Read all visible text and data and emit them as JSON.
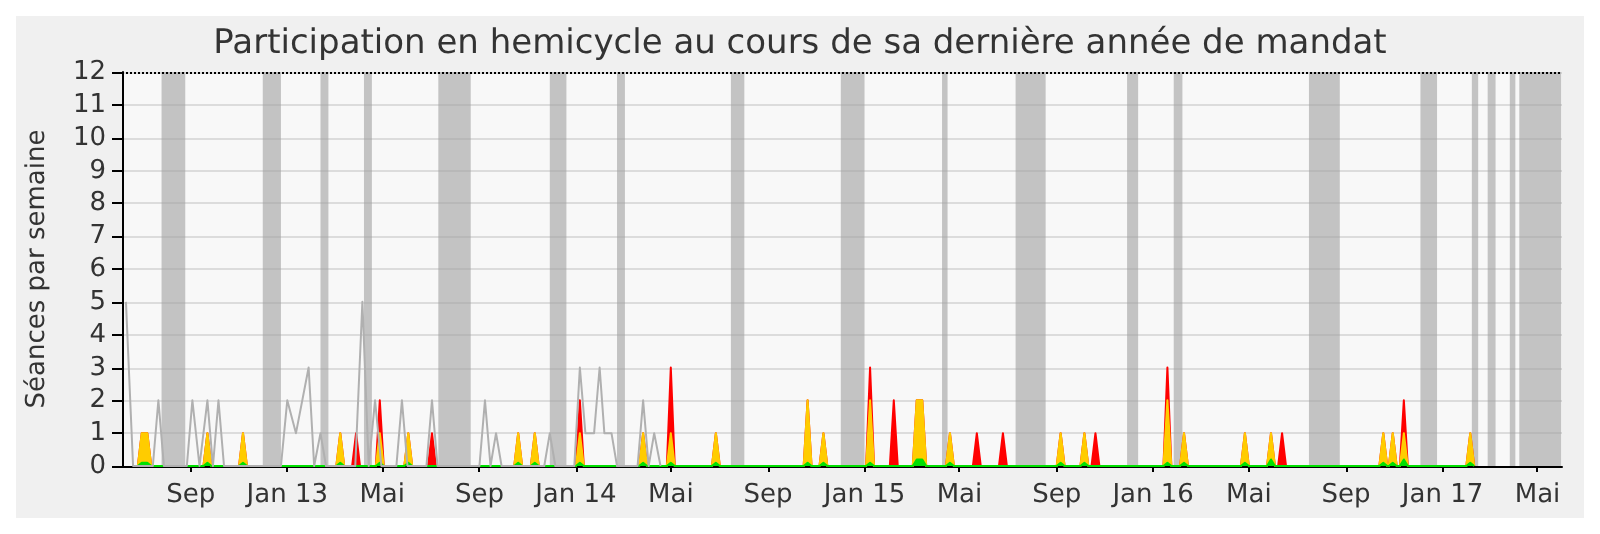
{
  "chart_data": {
    "type": "area",
    "title": "Participation en hemicycle au cours de sa dernière année de mandat",
    "ylabel": "Séances par semaine",
    "x": [
      "2012-06-26",
      "2012-07-01",
      "2012-07-08",
      "2012-07-13",
      "2012-09-17",
      "2012-09-22",
      "2012-09-27",
      "2012-11-01",
      "2012-11-06",
      "2012-11-11",
      "2013-03-04",
      "2013-03-09",
      "2013-03-14",
      "2013-03-24",
      "2013-03-29",
      "2013-04-03",
      "2013-04-23",
      "2013-04-28",
      "2013-05-03",
      "2013-05-29",
      "2013-06-03",
      "2013-06-08",
      "2013-06-28",
      "2013-07-03",
      "2013-07-08",
      "2013-10-15",
      "2013-10-20",
      "2013-10-25",
      "2013-11-05",
      "2013-11-10",
      "2013-11-15",
      "2014-01-01",
      "2014-01-06",
      "2014-01-11",
      "2014-03-22",
      "2014-03-27",
      "2014-04-01",
      "2014-04-26",
      "2014-05-01",
      "2014-05-06",
      "2014-06-22",
      "2014-06-27",
      "2014-07-02",
      "2014-10-16",
      "2014-10-21",
      "2014-10-26",
      "2014-11-05",
      "2014-11-10",
      "2014-11-15",
      "2015-01-03",
      "2015-01-08",
      "2015-01-13",
      "2015-02-02",
      "2015-02-07",
      "2015-02-12",
      "2015-03-03",
      "2015-03-08",
      "2015-03-15",
      "2015-03-20",
      "2015-04-14",
      "2015-04-19",
      "2015-04-24",
      "2015-05-18",
      "2015-05-23",
      "2015-05-28",
      "2015-06-20",
      "2015-06-25",
      "2015-06-30",
      "2015-09-01",
      "2015-09-06",
      "2015-09-11",
      "2015-10-01",
      "2015-10-06",
      "2015-10-11",
      "2015-10-15",
      "2015-10-20",
      "2015-10-25",
      "2016-01-14",
      "2016-01-19",
      "2016-01-24",
      "2016-02-04",
      "2016-02-09",
      "2016-02-14",
      "2016-04-21",
      "2016-04-26",
      "2016-05-01",
      "2016-05-24",
      "2016-05-29",
      "2016-06-03",
      "2016-06-07",
      "2016-06-12",
      "2016-06-17",
      "2016-10-13",
      "2016-10-18",
      "2016-10-23",
      "2016-10-25",
      "2016-10-30",
      "2016-11-04",
      "2016-11-08",
      "2016-11-13",
      "2016-11-18",
      "2017-01-31",
      "2017-02-05",
      "2017-02-10"
    ],
    "series": [
      {
        "color": "#ff0000",
        "values": [
          0,
          1,
          1,
          0,
          0,
          1,
          0,
          0,
          1,
          0,
          0,
          1,
          0,
          0,
          1,
          0,
          0,
          2,
          0,
          0,
          1,
          0,
          0,
          1,
          0,
          0,
          1,
          0,
          0,
          1,
          0,
          0,
          2,
          0,
          0,
          1,
          0,
          0,
          3,
          0,
          0,
          1,
          0,
          0,
          2,
          0,
          0,
          1,
          0,
          0,
          3,
          0,
          0,
          2,
          0,
          0,
          2,
          2,
          0,
          0,
          1,
          0,
          0,
          1,
          0,
          0,
          1,
          0,
          0,
          1,
          0,
          0,
          1,
          0,
          0,
          1,
          0,
          0,
          3,
          0,
          0,
          1,
          0,
          0,
          1,
          0,
          0,
          1,
          0,
          0,
          1,
          0,
          0,
          1,
          0,
          0,
          1,
          0,
          0,
          2,
          0,
          0,
          1,
          0
        ]
      },
      {
        "color": "#ffcc00",
        "values": [
          0,
          1,
          1,
          0,
          0,
          1,
          0,
          0,
          1,
          0,
          0,
          1,
          0,
          0,
          0,
          0,
          0,
          1,
          0,
          0,
          1,
          0,
          0,
          0,
          0,
          0,
          1,
          0,
          0,
          1,
          0,
          0,
          1,
          0,
          0,
          1,
          0,
          0,
          1,
          0,
          0,
          1,
          0,
          0,
          2,
          0,
          0,
          1,
          0,
          0,
          2,
          0,
          0,
          0,
          0,
          0,
          2,
          2,
          0,
          0,
          1,
          0,
          0,
          0,
          0,
          0,
          0,
          0,
          0,
          1,
          0,
          0,
          1,
          0,
          0,
          0,
          0,
          0,
          2,
          0,
          0,
          1,
          0,
          0,
          1,
          0,
          0,
          1,
          0,
          0,
          0,
          0,
          0,
          1,
          0,
          0,
          1,
          0,
          0,
          1,
          0,
          0,
          1,
          0
        ]
      },
      {
        "color": "#00e000",
        "values": [
          0,
          0.1,
          0.1,
          0,
          0,
          0.1,
          0,
          0,
          0.1,
          0,
          0,
          0.1,
          0,
          0,
          0,
          0,
          0,
          0.1,
          0,
          0,
          0.1,
          0,
          0,
          0,
          0,
          0,
          0.1,
          0,
          0,
          0.1,
          0,
          0,
          0.1,
          0,
          0,
          0.1,
          0,
          0,
          0.1,
          0,
          0,
          0.1,
          0,
          0,
          0.1,
          0,
          0,
          0.1,
          0,
          0,
          0.1,
          0,
          0,
          0,
          0,
          0,
          0.2,
          0.2,
          0,
          0,
          0.1,
          0,
          0,
          0,
          0,
          0,
          0,
          0,
          0,
          0.1,
          0,
          0,
          0.1,
          0,
          0,
          0,
          0,
          0,
          0.1,
          0,
          0,
          0.1,
          0,
          0,
          0.1,
          0,
          0,
          0.2,
          0,
          0,
          0,
          0,
          0,
          0.1,
          0,
          0,
          0.1,
          0,
          0,
          0.2,
          0,
          0,
          0.1,
          0
        ]
      },
      {
        "type": "line",
        "color": "#b0b0b0",
        "x": [
          "2012-06-11",
          "2012-06-20",
          "2012-07-15",
          "2012-07-22",
          "2012-07-29",
          "2012-08-27",
          "2012-09-03",
          "2012-09-12",
          "2012-09-22",
          "2012-09-29",
          "2012-10-06",
          "2012-10-13",
          "2012-12-24",
          "2013-01-01",
          "2013-01-12",
          "2013-01-28",
          "2013-02-04",
          "2013-02-12",
          "2013-02-19",
          "2013-03-28",
          "2013-04-06",
          "2013-04-14",
          "2013-04-22",
          "2013-04-30",
          "2013-05-19",
          "2013-05-26",
          "2013-06-02",
          "2013-06-26",
          "2013-07-03",
          "2013-07-10",
          "2013-09-01",
          "2013-09-08",
          "2013-09-15",
          "2013-09-22",
          "2013-09-29",
          "2013-11-22",
          "2013-11-29",
          "2013-12-06",
          "2013-12-30",
          "2014-01-06",
          "2014-01-13",
          "2014-01-24",
          "2014-01-31",
          "2014-02-06",
          "2014-02-15",
          "2014-02-22",
          "2014-03-20",
          "2014-03-27",
          "2014-04-03",
          "2014-04-10",
          "2014-04-18"
        ],
        "values": [
          5,
          0,
          0,
          2,
          0,
          0,
          2,
          0,
          2,
          0,
          2,
          0,
          0,
          2,
          1,
          3,
          0,
          1,
          0,
          0,
          5,
          0,
          2,
          0,
          0,
          2,
          0,
          0,
          2,
          0,
          0,
          2,
          0,
          1,
          0,
          0,
          1,
          0,
          0,
          3,
          1,
          1,
          3,
          1,
          1,
          0,
          0,
          2,
          0,
          1,
          0
        ]
      }
    ],
    "xlim": [
      "2012-06-06",
      "2017-06-01"
    ],
    "xticks": [
      {
        "value": "2012-09",
        "label": "Sep"
      },
      {
        "value": "2013-01",
        "label": "Jan 13"
      },
      {
        "value": "2013-05",
        "label": "Mai"
      },
      {
        "value": "2013-09",
        "label": "Sep"
      },
      {
        "value": "2014-01",
        "label": "Jan 14"
      },
      {
        "value": "2014-05",
        "label": "Mai"
      },
      {
        "value": "2014-09",
        "label": "Sep"
      },
      {
        "value": "2015-01",
        "label": "Jan 15"
      },
      {
        "value": "2015-05",
        "label": "Mai"
      },
      {
        "value": "2015-09",
        "label": "Sep"
      },
      {
        "value": "2016-01",
        "label": "Jan 16"
      },
      {
        "value": "2016-05",
        "label": "Mai"
      },
      {
        "value": "2016-09",
        "label": "Sep"
      },
      {
        "value": "2017-01",
        "label": "Jan 17"
      },
      {
        "value": "2017-05",
        "label": "Mai"
      }
    ],
    "ylim": [
      0,
      12
    ],
    "yticks": [
      0,
      1,
      2,
      3,
      4,
      5,
      6,
      7,
      8,
      9,
      10,
      11,
      12
    ],
    "grid": "y",
    "marker": "none",
    "ref_lines": [
      {
        "axis": "y",
        "value": 12,
        "color": "#000000",
        "line_style": "dotted"
      }
    ],
    "bands": [
      {
        "axis": "x",
        "from": "2012-07-26",
        "to": "2012-08-25",
        "color": "#a0a0a0"
      },
      {
        "axis": "x",
        "from": "2012-12-01",
        "to": "2012-12-24",
        "color": "#a0a0a0"
      },
      {
        "axis": "x",
        "from": "2013-02-12",
        "to": "2013-02-22",
        "color": "#a0a0a0"
      },
      {
        "axis": "x",
        "from": "2013-04-08",
        "to": "2013-04-18",
        "color": "#a0a0a0"
      },
      {
        "axis": "x",
        "from": "2013-07-11",
        "to": "2013-08-21",
        "color": "#a0a0a0"
      },
      {
        "axis": "x",
        "from": "2013-11-29",
        "to": "2013-12-20",
        "color": "#a0a0a0"
      },
      {
        "axis": "x",
        "from": "2014-02-22",
        "to": "2014-03-04",
        "color": "#a0a0a0"
      },
      {
        "axis": "x",
        "from": "2014-07-16",
        "to": "2014-08-02",
        "color": "#a0a0a0"
      },
      {
        "axis": "x",
        "from": "2014-12-02",
        "to": "2015-01-01",
        "color": "#a0a0a0"
      },
      {
        "axis": "x",
        "from": "2015-04-09",
        "to": "2015-04-16",
        "color": "#a0a0a0"
      },
      {
        "axis": "x",
        "from": "2015-07-11",
        "to": "2015-08-18",
        "color": "#a0a0a0"
      },
      {
        "axis": "x",
        "from": "2015-11-29",
        "to": "2015-12-13",
        "color": "#a0a0a0"
      },
      {
        "axis": "x",
        "from": "2016-01-27",
        "to": "2016-02-07",
        "color": "#a0a0a0"
      },
      {
        "axis": "x",
        "from": "2016-07-16",
        "to": "2016-08-24",
        "color": "#a0a0a0"
      },
      {
        "axis": "x",
        "from": "2016-12-04",
        "to": "2016-12-25",
        "color": "#a0a0a0"
      },
      {
        "axis": "x",
        "from": "2017-02-07",
        "to": "2017-02-15",
        "color": "#a0a0a0"
      },
      {
        "axis": "x",
        "from": "2017-02-27",
        "to": "2017-03-09",
        "color": "#a0a0a0"
      },
      {
        "axis": "x",
        "from": "2017-03-27",
        "to": "2017-04-03",
        "color": "#a0a0a0"
      },
      {
        "axis": "x",
        "from": "2017-04-08",
        "to": "2017-05-31",
        "color": "#a0a0a0"
      }
    ]
  }
}
